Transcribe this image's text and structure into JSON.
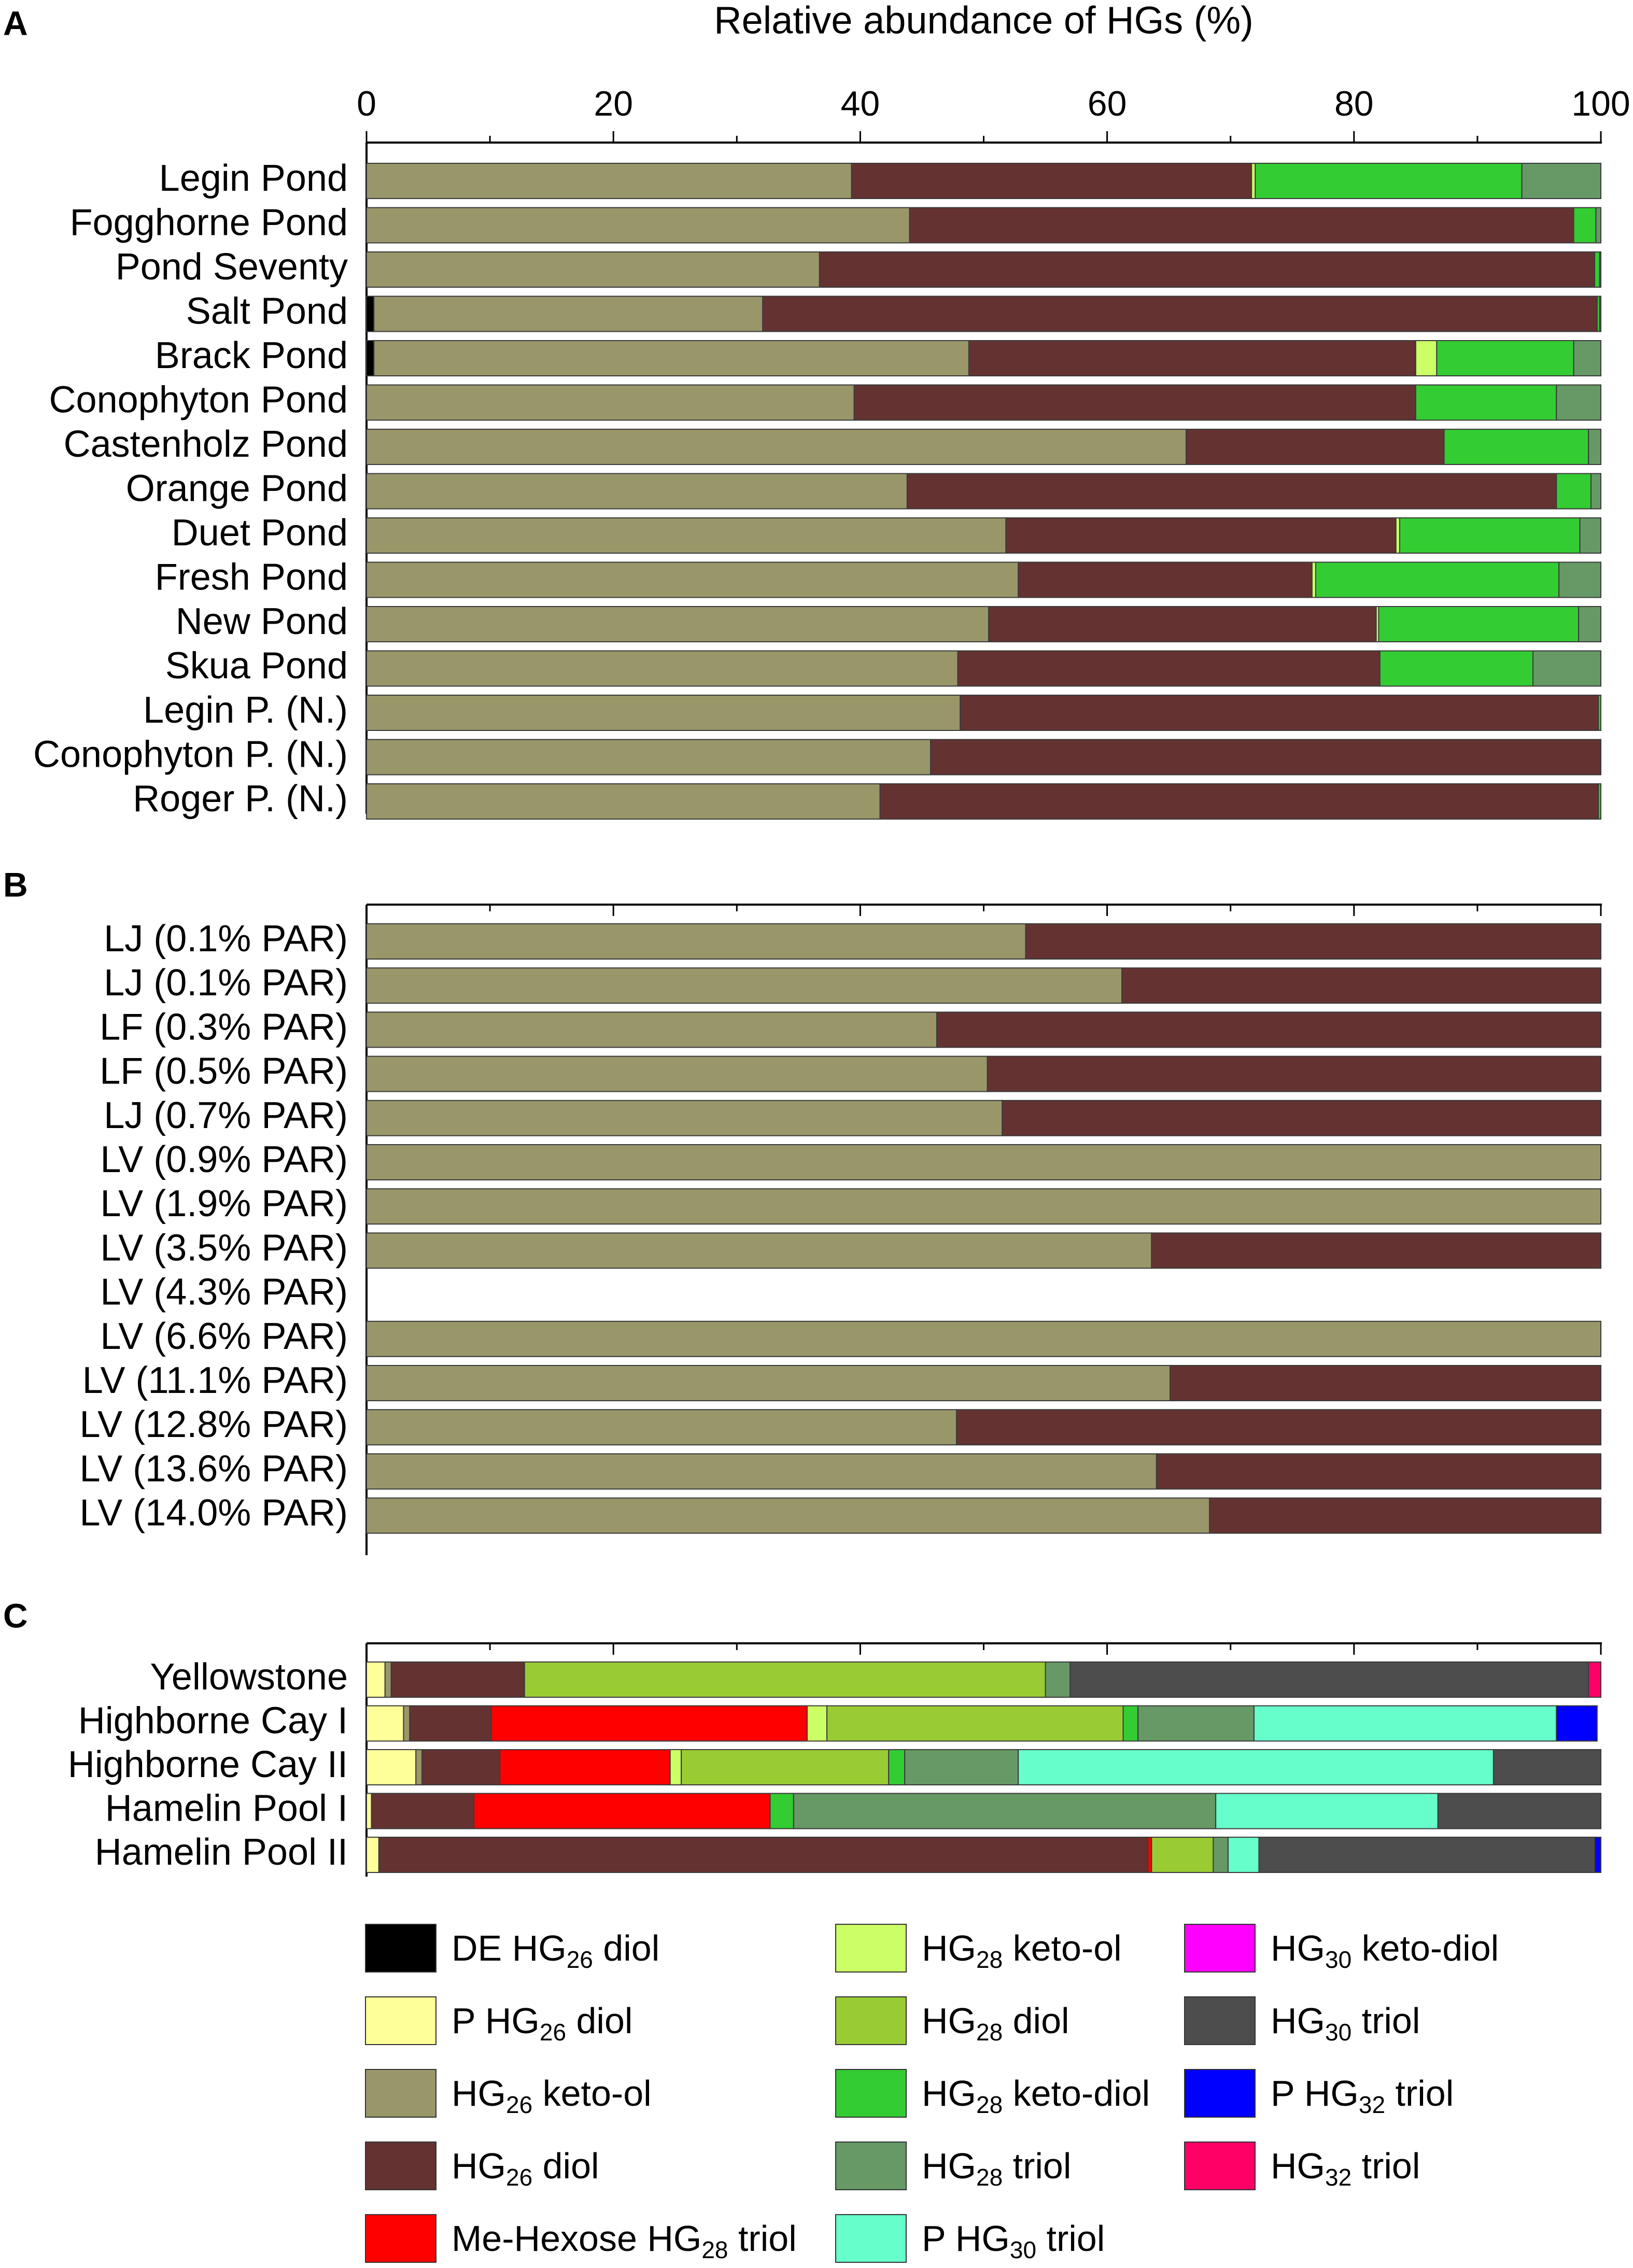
{
  "chart_data": [
    {
      "panel": "A",
      "type": "bar",
      "orientation": "horizontal",
      "stacked": true,
      "title": "",
      "xlabel": "Relative abundance of HGs (%)",
      "ylabel": "",
      "xlim": [
        0,
        100
      ],
      "xticks": [
        "0",
        "20",
        "40",
        "60",
        "80",
        "100"
      ],
      "categories": [
        "Legin Pond",
        "Fogghorne Pond",
        "Pond Seventy",
        "Salt Pond",
        "Brack Pond",
        "Conophyton Pond",
        "Castenholz Pond",
        "Orange Pond",
        "Duet Pond",
        "Fresh Pond",
        "New Pond",
        "Skua Pond",
        "Legin P. (N.)",
        "Conophyton P. (N.)",
        "Roger P. (N.)"
      ],
      "series": [
        {
          "name": "DE HG26 diol",
          "values": [
            0,
            0,
            0,
            0.6,
            0.6,
            0,
            0,
            0,
            0,
            0,
            0,
            0,
            0,
            0,
            0
          ]
        },
        {
          "name": "HG26 keto-ol",
          "values": [
            39.3,
            44,
            36.7,
            31.5,
            48.2,
            39.5,
            66.4,
            43.8,
            51.8,
            52.8,
            50.4,
            47.9,
            48.1,
            45.7,
            41.6
          ]
        },
        {
          "name": "HG26 diol",
          "values": [
            32.4,
            53.8,
            62.8,
            67.6,
            36.2,
            45.5,
            20.9,
            52.6,
            31.6,
            23.8,
            31.4,
            34.2,
            51.7,
            54.3,
            58.2
          ]
        },
        {
          "name": "HG28 keto-ol",
          "values": [
            0.3,
            0,
            0,
            0,
            1.7,
            0,
            0,
            0,
            0.3,
            0.3,
            0.2,
            0,
            0,
            0,
            0
          ]
        },
        {
          "name": "HG28 keto-diol",
          "values": [
            21.6,
            1.8,
            0.4,
            0.2,
            11.1,
            11.4,
            11.7,
            2.8,
            14.6,
            19.7,
            16.2,
            12.4,
            0.2,
            0,
            0.2
          ]
        },
        {
          "name": "HG28 triol",
          "values": [
            6.4,
            0.4,
            0.1,
            0.1,
            2.2,
            3.6,
            1.0,
            0.8,
            1.7,
            3.4,
            1.8,
            5.5,
            0,
            0,
            0
          ]
        }
      ]
    },
    {
      "panel": "B",
      "type": "bar",
      "orientation": "horizontal",
      "stacked": true,
      "title": "",
      "xlabel": "",
      "ylabel": "",
      "xlim": [
        0,
        100
      ],
      "categories": [
        "LJ (0.1% PAR)",
        "LJ (0.1% PAR)",
        "LF (0.3% PAR)",
        "LF (0.5% PAR)",
        "LJ (0.7% PAR)",
        "LV (0.9% PAR)",
        "LV (1.9% PAR)",
        "LV (3.5% PAR)",
        "LV (4.3% PAR)",
        "LV (6.6% PAR)",
        "LV (11.1% PAR)",
        "LV (12.8% PAR)",
        "LV (13.6% PAR)",
        "LV (14.0% PAR)"
      ],
      "series": [
        {
          "name": "HG26 keto-ol",
          "values": [
            53.4,
            61.2,
            46.2,
            50.3,
            51.5,
            100,
            100,
            63.6,
            0,
            100,
            65.1,
            47.8,
            64,
            68.3
          ]
        },
        {
          "name": "HG26 diol",
          "values": [
            46.6,
            38.8,
            53.8,
            49.7,
            48.5,
            0,
            0,
            36.4,
            0,
            0,
            34.9,
            52.2,
            36,
            31.7
          ]
        }
      ]
    },
    {
      "panel": "C",
      "type": "bar",
      "orientation": "horizontal",
      "stacked": true,
      "title": "",
      "xlabel": "",
      "ylabel": "",
      "xlim": [
        0,
        100
      ],
      "categories": [
        "Yellowstone",
        "Highborne  Cay  I",
        "Highborne  Cay  II",
        "Hamelin Pool  I",
        "Hamelin Pool  II"
      ],
      "series": [
        {
          "name": "P HG26 diol",
          "values": [
            1.5,
            3.0,
            4.0,
            0.4,
            1.0
          ]
        },
        {
          "name": "HG26 keto-ol",
          "values": [
            0.5,
            0.5,
            0.5,
            0,
            0
          ]
        },
        {
          "name": "HG26 diol",
          "values": [
            10.8,
            6.6,
            6.3,
            8.3,
            62.3
          ]
        },
        {
          "name": "Me-Hexose HG28 triol",
          "values": [
            0,
            25.6,
            13.8,
            24,
            0.3
          ]
        },
        {
          "name": "HG28 keto-ol",
          "values": [
            0,
            1.6,
            0.9,
            0,
            0
          ]
        },
        {
          "name": "HG28 diol",
          "values": [
            42.2,
            24.0,
            16.8,
            0,
            5.0
          ]
        },
        {
          "name": "HG28 keto-diol",
          "values": [
            0,
            1.2,
            1.3,
            1.9,
            0
          ]
        },
        {
          "name": "HG28 triol",
          "values": [
            2.0,
            9.4,
            9.2,
            34.2,
            1.2
          ]
        },
        {
          "name": "P HG30 triol",
          "values": [
            0,
            24.5,
            38.5,
            18.0,
            2.5
          ]
        },
        {
          "name": "HG30 triol",
          "values": [
            42.0,
            0,
            8.7,
            13.3,
            27.2
          ]
        },
        {
          "name": "P HG32 triol",
          "values": [
            0,
            3.3,
            0,
            0,
            0.5
          ]
        },
        {
          "name": "HG32 triol",
          "values": [
            1.0,
            0,
            0,
            0,
            0
          ]
        }
      ]
    }
  ],
  "legend": [
    {
      "name": "DE HG26 diol",
      "prefix": "DE HG",
      "sub": "26",
      "suffix": " diol",
      "color": "#000000"
    },
    {
      "name": "P HG26 diol",
      "prefix": "P HG",
      "sub": "26",
      "suffix": " diol",
      "color": "#ffff99"
    },
    {
      "name": "HG26 keto-ol",
      "prefix": "HG",
      "sub": "26",
      "suffix": " keto-ol",
      "color": "#99966a"
    },
    {
      "name": "HG26 diol",
      "prefix": "HG",
      "sub": "26",
      "suffix": " diol",
      "color": "#653232"
    },
    {
      "name": "Me-Hexose HG28 triol",
      "prefix": "Me-Hexose HG",
      "sub": "28",
      "suffix": " triol",
      "color": "#ff0000"
    },
    {
      "name": "HG28 keto-ol",
      "prefix": "HG",
      "sub": "28",
      "suffix": " keto-ol",
      "color": "#ccff66"
    },
    {
      "name": "HG28 diol",
      "prefix": "HG",
      "sub": "28",
      "suffix": " diol",
      "color": "#99cc33"
    },
    {
      "name": "HG28 keto-diol",
      "prefix": "HG",
      "sub": "28",
      "suffix": " keto-diol",
      "color": "#33cc33"
    },
    {
      "name": "HG28 triol",
      "prefix": "HG",
      "sub": "28",
      "suffix": " triol",
      "color": "#669966"
    },
    {
      "name": "P HG30 triol",
      "prefix": "P HG",
      "sub": "30",
      "suffix": " triol",
      "color": "#66ffcc"
    },
    {
      "name": "HG30 keto-diol",
      "prefix": "HG",
      "sub": "30",
      "suffix": " keto-diol",
      "color": "#ff00ff"
    },
    {
      "name": "HG30 triol",
      "prefix": "HG",
      "sub": "30",
      "suffix": " triol",
      "color": "#4d4d4d"
    },
    {
      "name": "P HG32 triol",
      "prefix": "P HG",
      "sub": "32",
      "suffix": " triol",
      "color": "#0000ff"
    },
    {
      "name": "HG32 triol",
      "prefix": "HG",
      "sub": "32",
      "suffix": " triol",
      "color": "#ff0066"
    }
  ]
}
